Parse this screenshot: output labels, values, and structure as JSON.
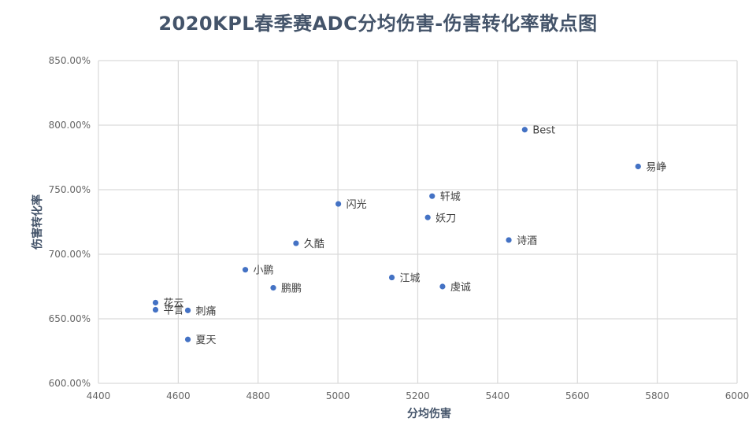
{
  "chart_data": {
    "type": "scatter",
    "title": "2020KPL春季赛ADC分均伤害-伤害转化率散点图",
    "xlabel": "分均伤害",
    "ylabel": "伤害转化率",
    "xlim": [
      4400,
      6000
    ],
    "ylim": [
      600,
      850
    ],
    "x_ticks": [
      "4400",
      "4600",
      "4800",
      "5000",
      "5200",
      "5400",
      "5600",
      "5800",
      "6000"
    ],
    "y_ticks": [
      "600.00%",
      "650.00%",
      "700.00%",
      "750.00%",
      "800.00%",
      "850.00%"
    ],
    "grid": true,
    "marker_color": "#4472c4",
    "points": [
      {
        "label": "Best",
        "x": 5468,
        "y": 796.5
      },
      {
        "label": "易峥",
        "x": 5752,
        "y": 768
      },
      {
        "label": "轩城",
        "x": 5236,
        "y": 745
      },
      {
        "label": "闪光",
        "x": 5001,
        "y": 739
      },
      {
        "label": "妖刀",
        "x": 5225,
        "y": 728.5
      },
      {
        "label": "诗酒",
        "x": 5428,
        "y": 711
      },
      {
        "label": "久酷",
        "x": 4895,
        "y": 708.5
      },
      {
        "label": "小鹏",
        "x": 4768,
        "y": 688
      },
      {
        "label": "江城",
        "x": 5135,
        "y": 682
      },
      {
        "label": "鹏鹏",
        "x": 4838,
        "y": 674
      },
      {
        "label": "虔诚",
        "x": 5262,
        "y": 675
      },
      {
        "label": "花云",
        "x": 4543,
        "y": 662.5
      },
      {
        "label": "平言",
        "x": 4543,
        "y": 657
      },
      {
        "label": "刺痛",
        "x": 4624,
        "y": 656.5
      },
      {
        "label": "夏天",
        "x": 4624,
        "y": 634
      }
    ]
  }
}
